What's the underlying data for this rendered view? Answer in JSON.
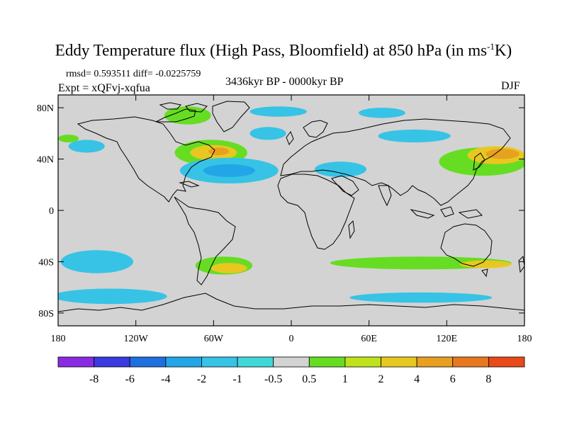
{
  "title_main": "Eddy Temperature flux (High Pass, Bloomfield) at 850 hPa (in ms",
  "title_sup": "-1",
  "title_end": "K)",
  "rmsd_text": "rmsd= 0.593511  diff= -0.0225759",
  "expt_text": "Expt = xQFvj-xqfua",
  "period_text": "3436kyr BP - 0000kyr BP",
  "season_text": "DJF",
  "lat_labels": [
    {
      "text": "80N",
      "lat": 80
    },
    {
      "text": "40N",
      "lat": 40
    },
    {
      "text": "0",
      "lat": 0
    },
    {
      "text": "40S",
      "lat": -40
    },
    {
      "text": "80S",
      "lat": -80
    }
  ],
  "lon_labels": [
    {
      "text": "180",
      "lon": -180
    },
    {
      "text": "120W",
      "lon": -120
    },
    {
      "text": "60W",
      "lon": -60
    },
    {
      "text": "0",
      "lon": 0
    },
    {
      "text": "60E",
      "lon": 60
    },
    {
      "text": "120E",
      "lon": 120
    },
    {
      "text": "180",
      "lon": 180
    }
  ],
  "colorbar": {
    "colors": [
      "#8a2be2",
      "#3a3ae0",
      "#1f6fe0",
      "#22a6e8",
      "#36c3e6",
      "#3fd8d8",
      "#d3d3d3",
      "#66dd22",
      "#bfe21a",
      "#e8c820",
      "#e8a020",
      "#e87820",
      "#e84a18"
    ],
    "labels": [
      "-8",
      "-6",
      "-4",
      "-2",
      "-1",
      "-0.5",
      "0.5",
      "1",
      "2",
      "4",
      "6",
      "8"
    ]
  },
  "map": {
    "background": "#d3d3d3",
    "anomalies": [
      {
        "name": "arctic-canada-positive",
        "color": "#66dd22",
        "lon": -80,
        "lat": 74,
        "rx": 18,
        "ry": 7
      },
      {
        "name": "arctic-north-negative",
        "color": "#36c3e6",
        "lon": -10,
        "lat": 77,
        "rx": 22,
        "ry": 4
      },
      {
        "name": "siberia-north-negative",
        "color": "#36c3e6",
        "lon": 70,
        "lat": 76,
        "rx": 18,
        "ry": 4
      },
      {
        "name": "north-atlantic-positive",
        "color": "#66dd22",
        "lon": -62,
        "lat": 45,
        "rx": 28,
        "ry": 10
      },
      {
        "name": "north-atlantic-positive-core",
        "color": "#e8c820",
        "lon": -60,
        "lat": 45,
        "rx": 18,
        "ry": 6
      },
      {
        "name": "north-atlantic-positive-max",
        "color": "#e8a020",
        "lon": -56,
        "lat": 46,
        "rx": 8,
        "ry": 3
      },
      {
        "name": "subtropical-atlantic-negative",
        "color": "#36c3e6",
        "lon": -48,
        "lat": 31,
        "rx": 38,
        "ry": 10
      },
      {
        "name": "subtropical-atlantic-negative-core",
        "color": "#22a6e8",
        "lon": -48,
        "lat": 31,
        "rx": 20,
        "ry": 5
      },
      {
        "name": "north-pacific-east-negative",
        "color": "#36c3e6",
        "lon": -158,
        "lat": 50,
        "rx": 14,
        "ry": 5
      },
      {
        "name": "north-pacific-east-positive",
        "color": "#66dd22",
        "lon": -172,
        "lat": 56,
        "rx": 8,
        "ry": 3
      },
      {
        "name": "europe-negative",
        "color": "#36c3e6",
        "lon": -18,
        "lat": 60,
        "rx": 14,
        "ry": 5
      },
      {
        "name": "siberia-negative",
        "color": "#36c3e6",
        "lon": 95,
        "lat": 58,
        "rx": 28,
        "ry": 5
      },
      {
        "name": "middle-east-negative",
        "color": "#36c3e6",
        "lon": 38,
        "lat": 32,
        "rx": 20,
        "ry": 6
      },
      {
        "name": "east-asia-pacific-positive",
        "color": "#66dd22",
        "lon": 148,
        "lat": 38,
        "rx": 34,
        "ry": 11
      },
      {
        "name": "east-asia-pacific-core",
        "color": "#e8c820",
        "lon": 158,
        "lat": 43,
        "rx": 22,
        "ry": 7
      },
      {
        "name": "east-asia-pacific-max",
        "color": "#e8a020",
        "lon": 163,
        "lat": 44,
        "rx": 13,
        "ry": 4
      },
      {
        "name": "south-pacific-negative",
        "color": "#36c3e6",
        "lon": -150,
        "lat": -40,
        "rx": 28,
        "ry": 9
      },
      {
        "name": "south-america-positive",
        "color": "#66dd22",
        "lon": -52,
        "lat": -43,
        "rx": 22,
        "ry": 7
      },
      {
        "name": "south-atlantic-positive-core",
        "color": "#e8c820",
        "lon": -48,
        "lat": -45,
        "rx": 14,
        "ry": 4
      },
      {
        "name": "indian-ocean-positive",
        "color": "#66dd22",
        "lon": 100,
        "lat": -41,
        "rx": 70,
        "ry": 5
      },
      {
        "name": "australia-south-core",
        "color": "#e8c820",
        "lon": 150,
        "lat": -42,
        "rx": 20,
        "ry": 3
      },
      {
        "name": "southern-ocean-negative-west",
        "color": "#36c3e6",
        "lon": -140,
        "lat": -67,
        "rx": 44,
        "ry": 6
      },
      {
        "name": "southern-ocean-negative-east",
        "color": "#36c3e6",
        "lon": 100,
        "lat": -68,
        "rx": 55,
        "ry": 4
      }
    ]
  }
}
